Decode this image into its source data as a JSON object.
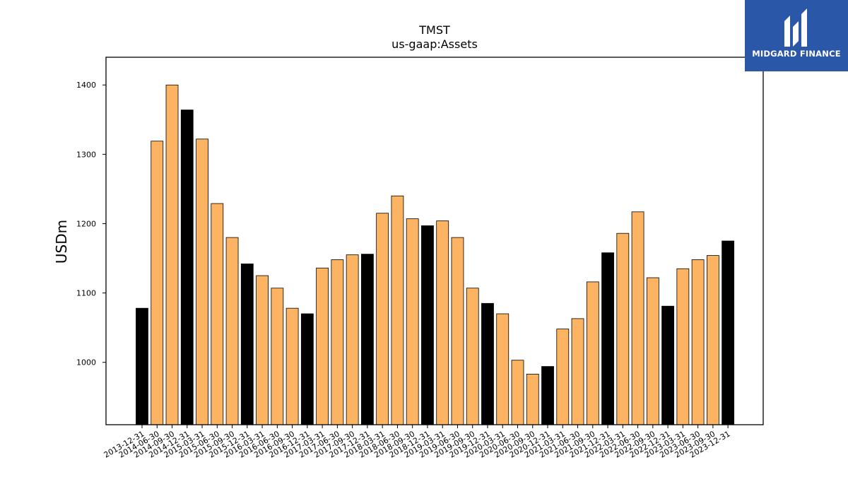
{
  "brand": {
    "name": "MIDGARD FINANCE",
    "icon": "midgard-logo-icon",
    "background": "#2a57a8"
  },
  "chart_data": {
    "type": "bar",
    "title": "TMST",
    "subtitle": "us-gaap:Assets",
    "xlabel": "",
    "ylabel": "USDm",
    "ylim": [
      910,
      1440
    ],
    "yticks": [
      1000,
      1100,
      1200,
      1300,
      1400
    ],
    "grid": false,
    "colors": {
      "annual": "#000000",
      "quarterly": "#fdb462",
      "edge": "#000000"
    },
    "categories": [
      "2013-12-31",
      "2014-06-30",
      "2014-09-30",
      "2014-12-31",
      "2015-03-31",
      "2015-06-30",
      "2015-09-30",
      "2015-12-31",
      "2016-03-31",
      "2016-06-30",
      "2016-09-30",
      "2016-12-31",
      "2017-03-31",
      "2017-06-30",
      "2017-09-30",
      "2017-12-31",
      "2018-03-31",
      "2018-06-30",
      "2018-09-30",
      "2018-12-31",
      "2019-03-31",
      "2019-06-30",
      "2019-09-30",
      "2019-12-31",
      "2020-03-31",
      "2020-06-30",
      "2020-09-30",
      "2020-12-31",
      "2021-03-31",
      "2021-06-30",
      "2021-09-30",
      "2021-12-31",
      "2022-03-31",
      "2022-06-30",
      "2022-09-30",
      "2022-12-31",
      "2023-03-31",
      "2023-06-30",
      "2023-09-30",
      "2023-12-31"
    ],
    "values": [
      1078,
      1319,
      1400,
      1364,
      1322,
      1229,
      1180,
      1142,
      1125,
      1107,
      1078,
      1070,
      1136,
      1148,
      1155,
      1156,
      1215,
      1240,
      1207,
      1197,
      1204,
      1180,
      1107,
      1085,
      1070,
      1003,
      983,
      994,
      1048,
      1063,
      1116,
      1158,
      1186,
      1217,
      1122,
      1081,
      1135,
      1148,
      1154,
      1175
    ],
    "annual": [
      true,
      false,
      false,
      true,
      false,
      false,
      false,
      true,
      false,
      false,
      false,
      true,
      false,
      false,
      false,
      true,
      false,
      false,
      false,
      true,
      false,
      false,
      false,
      true,
      false,
      false,
      false,
      true,
      false,
      false,
      false,
      true,
      false,
      false,
      false,
      true,
      false,
      false,
      false,
      true
    ]
  }
}
